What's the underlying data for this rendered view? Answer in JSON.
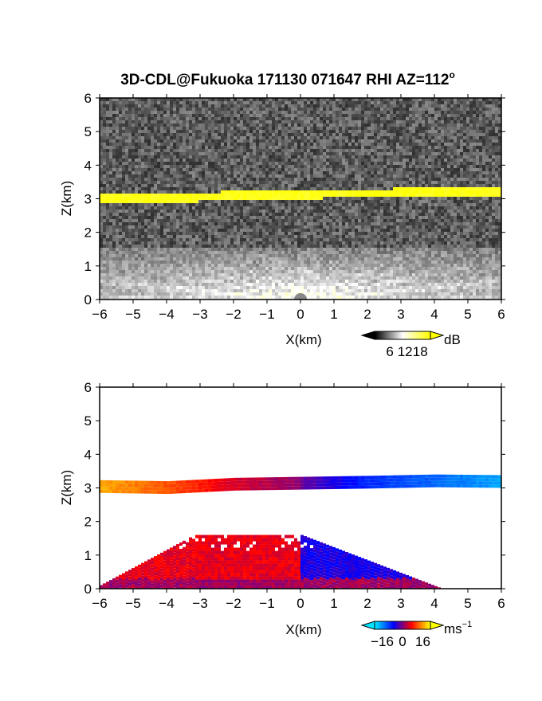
{
  "title": "3D-CDL@Fukuoka 171130 071647 RHI AZ=112",
  "title_superscript": "o",
  "chart_data": [
    {
      "type": "heatmap",
      "panel": "reflectivity",
      "xlabel": "X(km)",
      "ylabel": "Z(km)",
      "xlim": [
        -6,
        6
      ],
      "ylim": [
        0,
        6
      ],
      "x_ticks": [
        "−6",
        "−5",
        "−4",
        "−3",
        "−2",
        "−1",
        "0",
        "1",
        "2",
        "3",
        "4",
        "5",
        "6"
      ],
      "y_ticks": [
        "0",
        "1",
        "2",
        "3",
        "4",
        "5",
        "6"
      ],
      "colorbar": {
        "unit": "dB",
        "ticks": [
          "6",
          "12",
          "18"
        ],
        "tick_values": [
          6,
          12,
          18
        ],
        "range": [
          0,
          22
        ],
        "colors": [
          "#000000",
          "#ffffff",
          "#ffff00"
        ]
      },
      "features": {
        "cloud_layer": {
          "color": "#ffff00",
          "base_km": [
            [
              -6,
              2.95
            ],
            [
              -4,
              2.92
            ],
            [
              -2,
              3.02
            ],
            [
              0,
              3.05
            ],
            [
              2,
              3.08
            ],
            [
              4,
              3.12
            ],
            [
              6,
              3.1
            ]
          ],
          "thickness_km": 0.25
        },
        "near_ground_beams": {
          "top_km": 1.6,
          "value_db": 12
        },
        "background_value_db": 3
      }
    },
    {
      "type": "heatmap",
      "panel": "doppler_velocity",
      "xlabel": "X(km)",
      "ylabel": "Z(km)",
      "xlim": [
        -6,
        6
      ],
      "ylim": [
        0,
        6
      ],
      "x_ticks": [
        "−6",
        "−5",
        "−4",
        "−3",
        "−2",
        "−1",
        "0",
        "1",
        "2",
        "3",
        "4",
        "5",
        "6"
      ],
      "y_ticks": [
        "0",
        "1",
        "2",
        "3",
        "4",
        "5",
        "6"
      ],
      "colorbar": {
        "unit": "ms",
        "unit_superscript": "−1",
        "ticks": [
          "−16",
          "0",
          "16"
        ],
        "tick_values": [
          -16,
          0,
          16
        ],
        "range": [
          -22,
          22
        ],
        "colors": [
          "#00e5ff",
          "#0000ff",
          "#ff0000",
          "#ffff00"
        ]
      },
      "features": {
        "cloud_layer_velocity_ms": [
          [
            -6,
            17
          ],
          [
            -4,
            12
          ],
          [
            -2,
            5
          ],
          [
            -0.1,
            1
          ],
          [
            0.1,
            -2
          ],
          [
            2,
            -10
          ],
          [
            4,
            -14
          ],
          [
            6,
            -18
          ]
        ],
        "boundary_layer_velocity_ms": {
          "left_side": 6,
          "right_side": -6,
          "bottom_left": 2,
          "bottom_right": 2
        },
        "boundary_layer_top_km": 1.6
      }
    }
  ]
}
